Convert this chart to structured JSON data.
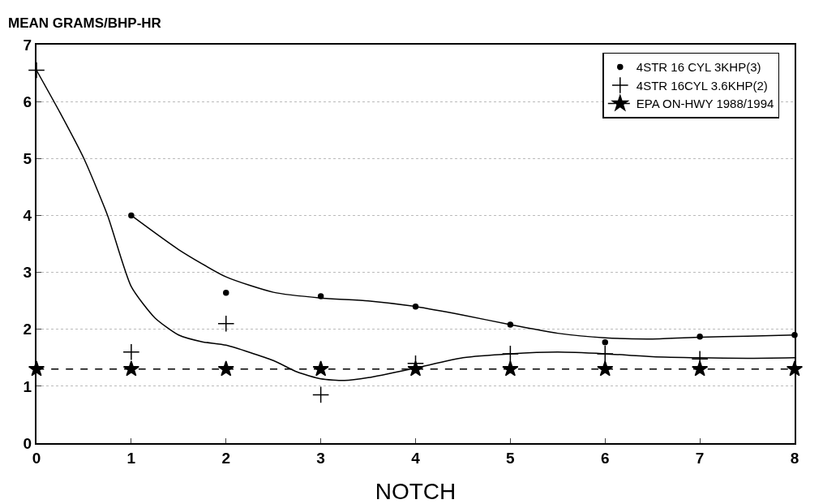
{
  "chart_data": {
    "type": "scatter",
    "xlabel": "NOTCH",
    "ylabel": "MEAN GRAMS/BHP-HR",
    "xlim": [
      0,
      8
    ],
    "xticks": [
      0,
      1,
      2,
      3,
      4,
      5,
      6,
      7,
      8
    ],
    "ylim": [
      0,
      7
    ],
    "yticks": [
      0,
      1,
      2,
      3,
      4,
      5,
      6,
      7
    ],
    "grid": "y",
    "legend": "top right",
    "series": [
      {
        "name": "4STR 16 CYL 3KHP(3)",
        "marker": "circle",
        "color": "#000000",
        "x": [
          1,
          2,
          3,
          4,
          5,
          6,
          7,
          8
        ],
        "values": [
          4.0,
          2.64,
          2.58,
          2.4,
          2.08,
          1.77,
          1.87,
          1.9
        ]
      },
      {
        "type": "line",
        "marker": "none",
        "line_style": "solid",
        "color": "#000000",
        "x": [
          1,
          1.5,
          2,
          2.5,
          3,
          3.5,
          4,
          4.5,
          5,
          5.5,
          6,
          6.5,
          7,
          7.5,
          8
        ],
        "values": [
          4.0,
          3.4,
          2.92,
          2.65,
          2.55,
          2.5,
          2.4,
          2.25,
          2.08,
          1.93,
          1.85,
          1.83,
          1.86,
          1.88,
          1.9
        ]
      },
      {
        "name": "4STR 16CYL 3.6KHP(2)",
        "marker": "cross",
        "color": "#000000",
        "x": [
          0,
          1,
          2,
          3,
          4,
          5,
          6,
          7
        ],
        "values": [
          6.55,
          1.6,
          2.1,
          0.85,
          1.4,
          1.57,
          1.57,
          1.48
        ]
      },
      {
        "type": "line",
        "marker": "none",
        "line_style": "solid",
        "color": "#000000",
        "x": [
          0,
          0.25,
          0.5,
          0.75,
          1,
          1.25,
          1.5,
          1.75,
          2,
          2.5,
          2.75,
          3,
          3.25,
          3.5,
          4,
          4.5,
          5,
          5.5,
          6,
          6.5,
          7,
          7.5,
          8
        ],
        "values": [
          6.55,
          5.8,
          5.0,
          4.0,
          2.75,
          2.2,
          1.9,
          1.78,
          1.72,
          1.45,
          1.25,
          1.13,
          1.1,
          1.15,
          1.32,
          1.5,
          1.57,
          1.6,
          1.57,
          1.52,
          1.5,
          1.49,
          1.5
        ]
      },
      {
        "name": "EPA ON-HWY 1988/1994",
        "type": "line",
        "marker": "star",
        "line_style": "dashed",
        "color": "#000000",
        "x": [
          0,
          1,
          2,
          3,
          4,
          5,
          6,
          7,
          8
        ],
        "values": [
          1.3,
          1.3,
          1.3,
          1.3,
          1.3,
          1.3,
          1.3,
          1.3,
          1.3
        ]
      }
    ]
  }
}
